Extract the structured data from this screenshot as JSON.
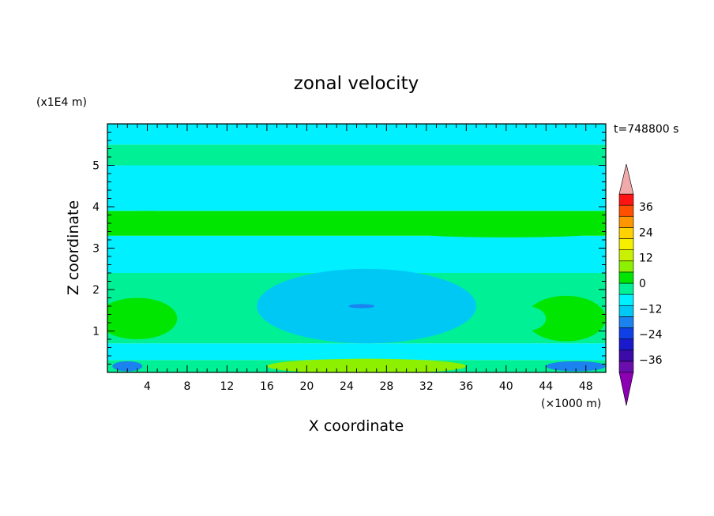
{
  "chart_data": {
    "type": "heatmap",
    "title": "zonal velocity",
    "xlabel": "X coordinate",
    "ylabel": "Z coordinate",
    "x_unit": "(×1000 m)",
    "y_unit": "(x1E4 m)",
    "time_label": "t=748800 s",
    "xlim": [
      0,
      50
    ],
    "ylim": [
      0,
      6
    ],
    "x_ticks": [
      4,
      8,
      12,
      16,
      20,
      24,
      28,
      32,
      36,
      40,
      44,
      48
    ],
    "y_ticks": [
      1,
      2,
      3,
      4,
      5
    ],
    "grid": false,
    "colorbar": {
      "position": "right",
      "tick_labels": [
        "36",
        "24",
        "12",
        "0",
        "−12",
        "−24",
        "−36"
      ],
      "tick_values": [
        36,
        24,
        12,
        0,
        -12,
        -24,
        -36
      ],
      "levels": [
        -42,
        -36,
        -30,
        -24,
        -18,
        -12,
        -6,
        0,
        6,
        12,
        18,
        24,
        30,
        36,
        42
      ],
      "colors": [
        "#6a0dad",
        "#3b0aa8",
        "#1a1acc",
        "#0f40e6",
        "#1c82f0",
        "#00c8f5",
        "#00f0ff",
        "#00f096",
        "#00e600",
        "#8cf000",
        "#c8f000",
        "#f5f000",
        "#ffd200",
        "#ff9600",
        "#ff5000",
        "#ff1414"
      ],
      "under_color": "#8c00b4",
      "over_color": "#f0aaaa"
    },
    "bands": [
      {
        "z0": 0.0,
        "z1": 0.3,
        "value": 3
      },
      {
        "z0": 0.3,
        "z1": 0.7,
        "value": -2
      },
      {
        "z0": 0.7,
        "z1": 1.6,
        "value": 4
      },
      {
        "z0": 1.6,
        "z1": 2.4,
        "value": 1
      },
      {
        "z0": 2.4,
        "z1": 3.0,
        "value": -3
      },
      {
        "z0": 3.0,
        "z1": 3.3,
        "value": -2
      },
      {
        "z0": 3.3,
        "z1": 3.9,
        "value": 6
      },
      {
        "z0": 3.9,
        "z1": 4.4,
        "value": -3
      },
      {
        "z0": 4.4,
        "z1": 5.0,
        "value": -1
      },
      {
        "z0": 5.0,
        "z1": 5.5,
        "value": 3
      },
      {
        "z0": 5.5,
        "z1": 6.0,
        "value": -2
      }
    ],
    "features": [
      {
        "x": 26,
        "z": 1.6,
        "rx": 11,
        "rz": 0.9,
        "value": -7
      },
      {
        "x": 26,
        "z": 1.6,
        "rx": 7,
        "rz": 0.5,
        "value": -10
      },
      {
        "x": 25.5,
        "z": 1.6,
        "rx": 1.3,
        "rz": 0.05,
        "value": -15
      },
      {
        "x": 26,
        "z": 0.15,
        "rx": 10,
        "rz": 0.18,
        "value": 14
      },
      {
        "x": 2,
        "z": 0.15,
        "rx": 1.5,
        "rz": 0.12,
        "value": -16
      },
      {
        "x": 47,
        "z": 0.15,
        "rx": 3,
        "rz": 0.12,
        "value": -16
      },
      {
        "x": 46,
        "z": 1.3,
        "rx": 4,
        "rz": 0.55,
        "value": 10
      },
      {
        "x": 3,
        "z": 1.3,
        "rx": 4,
        "rz": 0.5,
        "value": 9
      },
      {
        "x": 40,
        "z": 3.35,
        "rx": 9,
        "rz": 0.09,
        "value": 10
      },
      {
        "x": 4,
        "z": 3.75,
        "rx": 4,
        "rz": 0.15,
        "value": 10
      },
      {
        "x": 42,
        "z": 1.3,
        "rx": 2,
        "rz": 0.3,
        "value": 5
      }
    ]
  }
}
